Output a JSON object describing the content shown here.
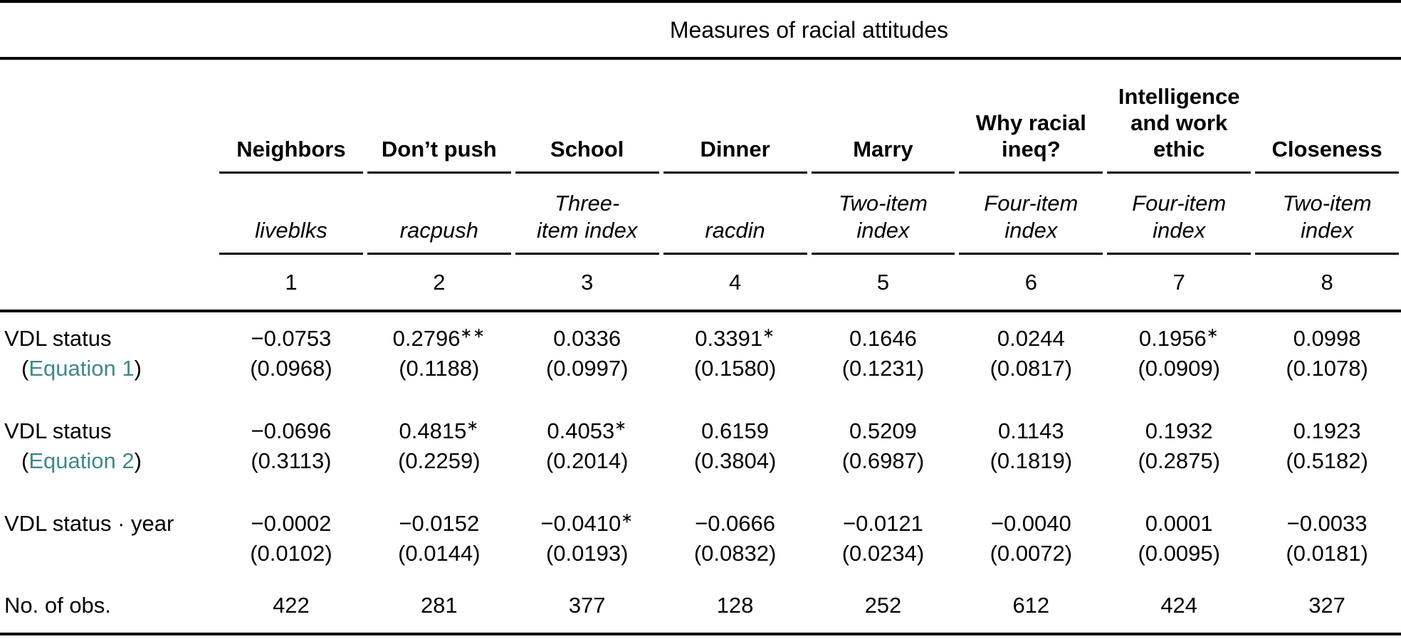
{
  "colors": {
    "text": "#000000",
    "link_teal": "#3E8989",
    "rule": "#000000"
  },
  "punct": {
    "open_paren": "(",
    "close_paren": ")"
  },
  "table": {
    "title": "Measures of racial attitudes",
    "columns": [
      {
        "header": "Neighbors",
        "subheader": "liveblks",
        "number": "1"
      },
      {
        "header": "Don’t push",
        "subheader": "racpush",
        "number": "2"
      },
      {
        "header": "School",
        "subheader": "Three-\nitem index",
        "number": "3"
      },
      {
        "header": "Dinner",
        "subheader": "racdin",
        "number": "4"
      },
      {
        "header": "Marry",
        "subheader": "Two-item\nindex",
        "number": "5"
      },
      {
        "header": "Why racial\nineq?",
        "subheader": "Four-item\nindex",
        "number": "6"
      },
      {
        "header": "Intelligence\nand work\nethic",
        "subheader": "Four-item\nindex",
        "number": "7"
      },
      {
        "header": "Closeness",
        "subheader": "Two-item\nindex",
        "number": "8"
      }
    ],
    "rows": [
      {
        "label": "VDL status",
        "link": "Equation 1",
        "cells": [
          {
            "value": "−0.0753",
            "stars": "",
            "se": "(0.0968)"
          },
          {
            "value": "0.2796",
            "stars": "∗∗",
            "se": "(0.1188)"
          },
          {
            "value": "0.0336",
            "stars": "",
            "se": "(0.0997)"
          },
          {
            "value": "0.3391",
            "stars": "∗",
            "se": "(0.1580)"
          },
          {
            "value": "0.1646",
            "stars": "",
            "se": "(0.1231)"
          },
          {
            "value": "0.0244",
            "stars": "",
            "se": "(0.0817)"
          },
          {
            "value": "0.1956",
            "stars": "∗",
            "se": "(0.0909)"
          },
          {
            "value": "0.0998",
            "stars": "",
            "se": "(0.1078)"
          }
        ]
      },
      {
        "label": "VDL status",
        "link": "Equation 2",
        "cells": [
          {
            "value": "−0.0696",
            "stars": "",
            "se": "(0.3113)"
          },
          {
            "value": "0.4815",
            "stars": "∗",
            "se": "(0.2259)"
          },
          {
            "value": "0.4053",
            "stars": "∗",
            "se": "(0.2014)"
          },
          {
            "value": "0.6159",
            "stars": "",
            "se": "(0.3804)"
          },
          {
            "value": "0.5209",
            "stars": "",
            "se": "(0.6987)"
          },
          {
            "value": "0.1143",
            "stars": "",
            "se": "(0.1819)"
          },
          {
            "value": "0.1932",
            "stars": "",
            "se": "(0.2875)"
          },
          {
            "value": "0.1923",
            "stars": "",
            "se": "(0.5182)"
          }
        ]
      },
      {
        "label": "VDL status · year",
        "link": null,
        "cells": [
          {
            "value": "−0.0002",
            "stars": "",
            "se": "(0.0102)"
          },
          {
            "value": "−0.0152",
            "stars": "",
            "se": "(0.0144)"
          },
          {
            "value": "−0.0410",
            "stars": "∗",
            "se": "(0.0193)"
          },
          {
            "value": "−0.0666",
            "stars": "",
            "se": "(0.0832)"
          },
          {
            "value": "−0.0121",
            "stars": "",
            "se": "(0.0234)"
          },
          {
            "value": "−0.0040",
            "stars": "",
            "se": "(0.0072)"
          },
          {
            "value": "0.0001",
            "stars": "",
            "se": "(0.0095)"
          },
          {
            "value": "−0.0033",
            "stars": "",
            "se": "(0.0181)"
          }
        ]
      }
    ],
    "obs": {
      "label": "No. of obs.",
      "values": [
        "422",
        "281",
        "377",
        "128",
        "252",
        "612",
        "424",
        "327"
      ]
    }
  }
}
